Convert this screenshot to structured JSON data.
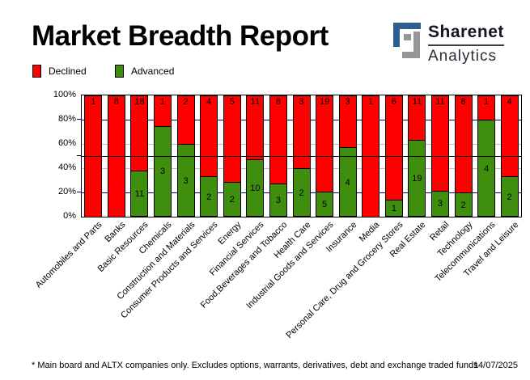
{
  "header": {
    "title": "Market Breadth Report"
  },
  "logo": {
    "brand_top": "Sharenet",
    "brand_bottom": "Analytics",
    "mark_icon": "sharenet-interlocked-squares",
    "mark_blue": "#2e5e8e",
    "mark_gray": "#96969a"
  },
  "legend": [
    {
      "label": "Declined",
      "color": "#ff0000"
    },
    {
      "label": "Advanced",
      "color": "#3f8e0e"
    }
  ],
  "chart_data": {
    "type": "bar",
    "stacked": true,
    "percent_stacked": true,
    "title": "Market Breadth Report",
    "xlabel": "",
    "ylabel": "",
    "ylim": [
      0,
      100
    ],
    "grid": true,
    "legend_position": "top-left",
    "categories": [
      "Automobiles and Parts",
      "Banks",
      "Basic Resources",
      "Chemicals",
      "Construction and Materials",
      "Consumer Products and Services",
      "Energy",
      "Financial Services",
      "Food,Beverages and Tobacco",
      "Health Care",
      "Industrial Goods and Services",
      "Insurance",
      "Media",
      "Personal Care, Drug and Grocery Stores",
      "Real Estate",
      "Retail",
      "Technology",
      "Telecommunications",
      "Travel and Leisure"
    ],
    "series": [
      {
        "name": "Declined",
        "color": "#ff0000",
        "values": [
          1,
          8,
          18,
          1,
          2,
          4,
          5,
          11,
          8,
          3,
          19,
          3,
          1,
          6,
          11,
          11,
          8,
          1,
          4
        ]
      },
      {
        "name": "Advanced",
        "color": "#3f8e0e",
        "values": [
          0,
          0,
          11,
          3,
          3,
          2,
          2,
          10,
          3,
          2,
          5,
          4,
          0,
          1,
          19,
          3,
          2,
          4,
          2
        ]
      }
    ],
    "yticks": [
      {
        "label": "100%",
        "pct": 100
      },
      {
        "label": "80%",
        "pct": 80
      },
      {
        "label": "60%",
        "pct": 60
      },
      {
        "label": "40%",
        "pct": 40
      },
      {
        "label": "20%",
        "pct": 20
      },
      {
        "label": "0%",
        "pct": 0
      }
    ],
    "gridlines": [
      {
        "pct": 80,
        "color": "#000080",
        "front": false
      },
      {
        "pct": 60,
        "color": "#c0c0c0",
        "front": false
      },
      {
        "pct": 40,
        "color": "#c0c0c0",
        "front": false
      },
      {
        "pct": 20,
        "color": "#000080",
        "front": false
      },
      {
        "pct": 50,
        "color": "#000000",
        "front": true
      }
    ],
    "axis_ticks": [
      {
        "pct": 80,
        "color": "#000080"
      },
      {
        "pct": 50,
        "color": "#000000"
      },
      {
        "pct": 20,
        "color": "#000080"
      }
    ]
  },
  "footer": {
    "note": "* Main board and ALTX companies only. Excludes options, warrants, derivatives, debt and exchange traded funds",
    "date": "14/07/2025"
  }
}
